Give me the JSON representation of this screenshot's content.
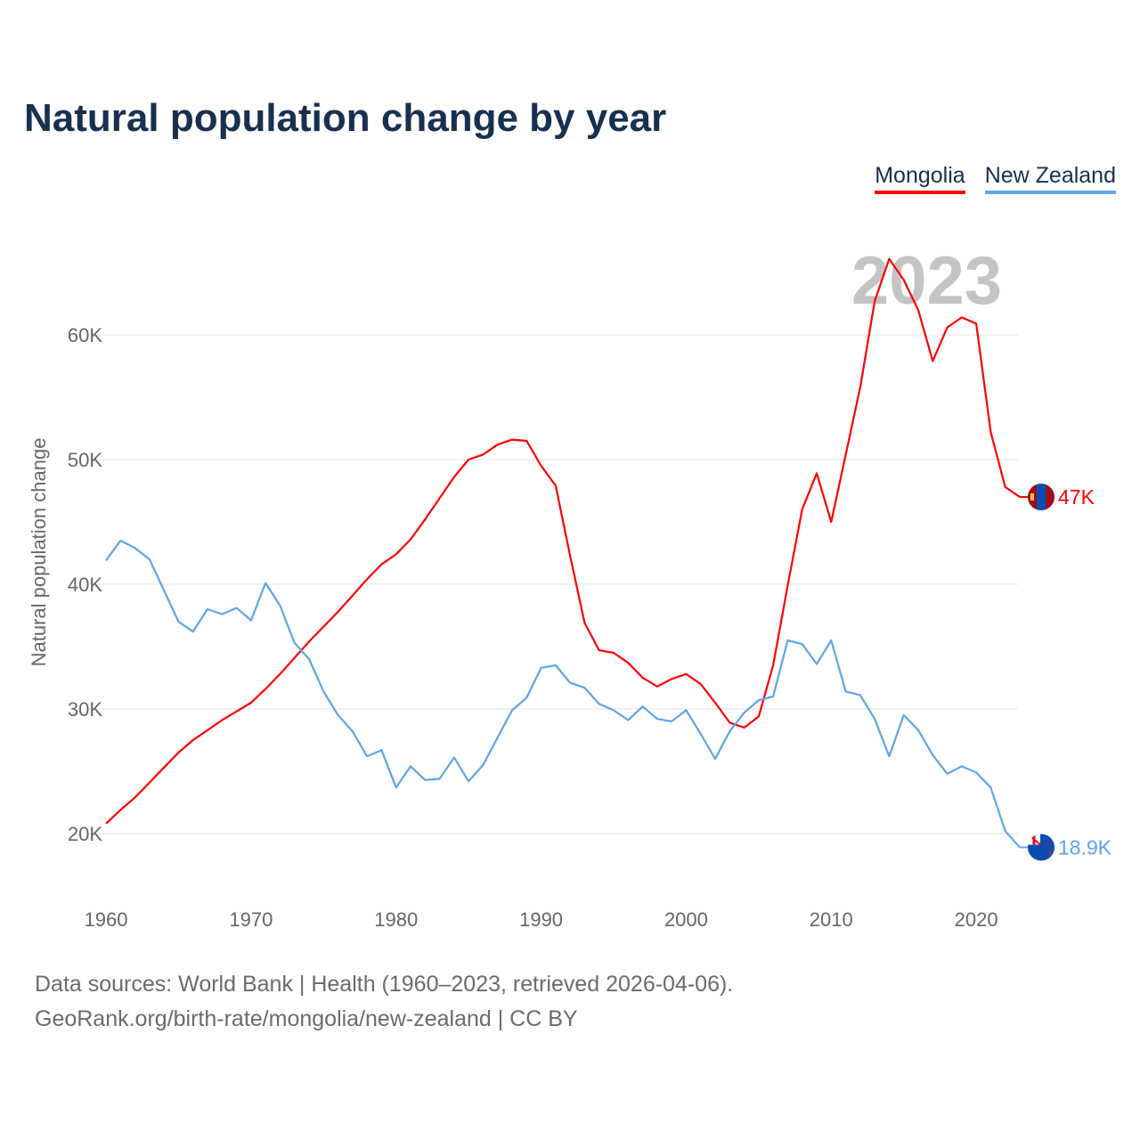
{
  "chart_data": {
    "type": "line",
    "title": "Natural population change by year",
    "xlabel": "",
    "ylabel": "Natural population change",
    "x": [
      1960,
      1961,
      1962,
      1963,
      1964,
      1965,
      1966,
      1967,
      1968,
      1969,
      1970,
      1971,
      1972,
      1973,
      1974,
      1975,
      1976,
      1977,
      1978,
      1979,
      1980,
      1981,
      1982,
      1983,
      1984,
      1985,
      1986,
      1987,
      1988,
      1989,
      1990,
      1991,
      1992,
      1993,
      1994,
      1995,
      1996,
      1997,
      1998,
      1999,
      2000,
      2001,
      2002,
      2003,
      2004,
      2005,
      2006,
      2007,
      2008,
      2009,
      2010,
      2011,
      2012,
      2013,
      2014,
      2015,
      2016,
      2017,
      2018,
      2019,
      2020,
      2021,
      2022,
      2023
    ],
    "xlim": [
      1960,
      2023
    ],
    "ylim": [
      20000,
      60000
    ],
    "x_ticks": [
      "1960",
      "1970",
      "1980",
      "1990",
      "2000",
      "2010",
      "2020"
    ],
    "y_ticks": [
      {
        "value": 20000,
        "label": "20K"
      },
      {
        "value": 30000,
        "label": "30K"
      },
      {
        "value": 40000,
        "label": "40K"
      },
      {
        "value": 50000,
        "label": "50K"
      },
      {
        "value": 60000,
        "label": "60K"
      }
    ],
    "grid": true,
    "legend_position": "top-right",
    "year_watermark": "2023",
    "series": [
      {
        "name": "Mongolia",
        "color": "#ff0000",
        "end_label": "47K",
        "flag": "mongolia-flag",
        "values": [
          20800,
          21900,
          22900,
          24100,
          25300,
          26500,
          27500,
          28300,
          29100,
          29800,
          30500,
          31600,
          32800,
          34100,
          35400,
          36600,
          37800,
          39100,
          40400,
          41600,
          42400,
          43600,
          45200,
          46900,
          48600,
          50000,
          50400,
          51200,
          51600,
          51500,
          49500,
          47900,
          42300,
          36900,
          34700,
          34500,
          33700,
          32500,
          31800,
          32400,
          32800,
          32000,
          30500,
          28900,
          28500,
          29400,
          33500,
          39900,
          46000,
          48900,
          45000,
          50400,
          55800,
          62700,
          66100,
          64400,
          62000,
          57900,
          60600,
          61400,
          60900,
          52200,
          47800,
          47000
        ]
      },
      {
        "name": "New Zealand",
        "color": "#5ea5ea",
        "end_label": "18.9K",
        "flag": "new-zealand-flag",
        "values": [
          41900,
          43500,
          42900,
          42000,
          39500,
          37000,
          36200,
          38000,
          37600,
          38100,
          37100,
          40100,
          38300,
          35300,
          34000,
          31400,
          29500,
          28200,
          26200,
          26700,
          23700,
          25400,
          24300,
          24400,
          26100,
          24200,
          25500,
          27700,
          29900,
          30900,
          33300,
          33500,
          32100,
          31700,
          30400,
          29900,
          29100,
          30200,
          29200,
          29000,
          29900,
          28000,
          26000,
          28200,
          29700,
          30700,
          31000,
          35500,
          35200,
          33600,
          35500,
          31400,
          31100,
          29200,
          26200,
          29500,
          28300,
          26300,
          24800,
          25400,
          24900,
          23700,
          20200,
          18900
        ]
      }
    ]
  },
  "footer": {
    "line1": "Data sources: World Bank | Health (1960–2023, retrieved 2026-04-06).",
    "line2": "GeoRank.org/birth-rate/mongolia/new-zealand | CC BY"
  }
}
